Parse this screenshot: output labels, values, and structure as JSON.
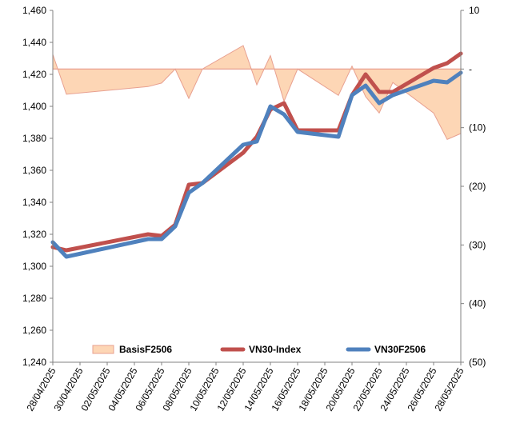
{
  "chart_data": {
    "type": "line",
    "categories": [
      "28/04/2025",
      "29/04/2025",
      "05/05/2025",
      "06/05/2025",
      "07/05/2025",
      "08/05/2025",
      "09/05/2025",
      "12/05/2025",
      "13/05/2025",
      "14/05/2025",
      "15/05/2025",
      "16/05/2025",
      "19/05/2025",
      "20/05/2025",
      "21/05/2025",
      "22/05/2025",
      "23/05/2025",
      "26/05/2025",
      "27/05/2025",
      "28/05/2025"
    ],
    "x_tick_labels": [
      "28/04/2025",
      "30/04/2025",
      "02/05/2025",
      "04/05/2025",
      "06/05/2025",
      "08/05/2025",
      "10/05/2025",
      "12/05/2025",
      "14/05/2025",
      "16/05/2025",
      "18/05/2025",
      "20/05/2025",
      "22/05/2025",
      "24/05/2025",
      "26/05/2025",
      "28/05/2025"
    ],
    "y_left": {
      "range": [
        1240,
        1460
      ],
      "ticks": [
        "1,240",
        "1,260",
        "1,280",
        "1,300",
        "1,320",
        "1,340",
        "1,360",
        "1,380",
        "1,400",
        "1,420",
        "1,440",
        "1,460"
      ]
    },
    "y_right": {
      "range": [
        -50,
        10
      ],
      "ticks": [
        "10",
        "-",
        "(10)",
        "(20)",
        "(30)",
        "(40)",
        "(50)"
      ]
    },
    "legend_position": "bottom",
    "series": [
      {
        "name": "BasisF2506",
        "kind": "area",
        "axis": "right",
        "color": "#fdd6b5",
        "edge_color": "#e8a090",
        "values": [
          2.5,
          -4.3,
          -3.0,
          -2.4,
          0.0,
          -5.0,
          0.0,
          4.0,
          -2.7,
          2.3,
          -5.5,
          0.0,
          -4.5,
          0.5,
          -4.7,
          -7.5,
          -2.3,
          -7.5,
          -12.0,
          -11.0
        ]
      },
      {
        "name": "VN30-Index",
        "kind": "line",
        "axis": "left",
        "color": "#c0504d",
        "values": [
          1312,
          1310,
          1320,
          1319,
          1326,
          1351,
          1352,
          1371,
          1381,
          1398,
          1402,
          1385,
          1385,
          1407,
          1420,
          1409,
          1409,
          1424,
          1427,
          1433
        ]
      },
      {
        "name": "VN30F2506",
        "kind": "line",
        "axis": "left",
        "color": "#4f81bd",
        "values": [
          1315,
          1306,
          1317,
          1317,
          1325,
          1346,
          1352,
          1376,
          1378,
          1400,
          1395,
          1384,
          1381,
          1407,
          1413,
          1402,
          1407,
          1416,
          1415,
          1421
        ]
      }
    ],
    "x_index_positions": [
      0,
      1,
      7,
      8,
      9,
      10,
      11,
      14,
      15,
      16,
      17,
      18,
      21,
      22,
      23,
      24,
      25,
      28,
      29,
      30
    ]
  }
}
